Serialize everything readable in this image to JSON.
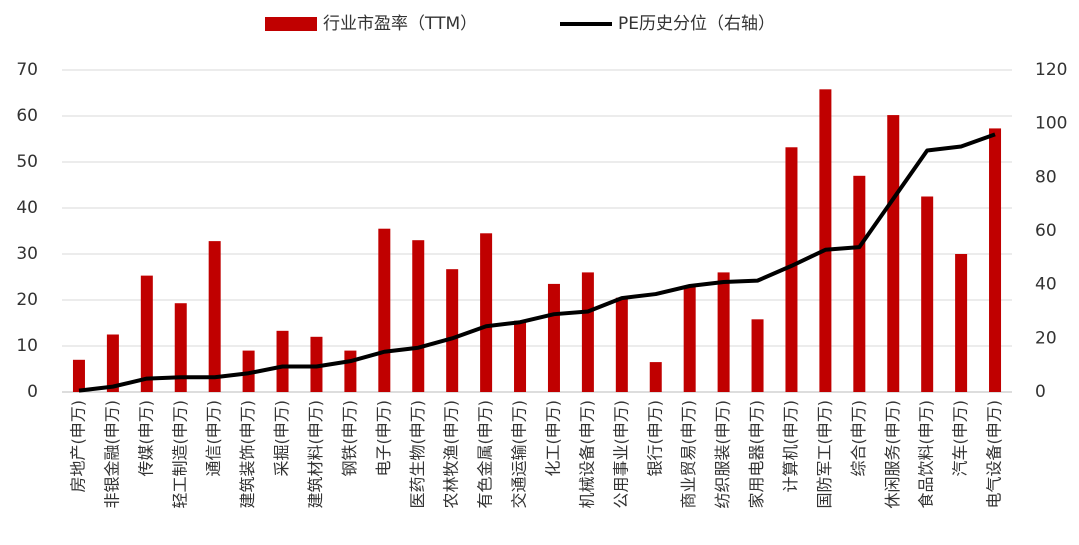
{
  "chart_data": {
    "type": "bar_line",
    "categories": [
      "房地产(申万)",
      "非银金融(申万)",
      "传媒(申万)",
      "轻工制造(申万)",
      "通信(申万)",
      "建筑装饰(申万)",
      "采掘(申万)",
      "建筑材料(申万)",
      "钢铁(申万)",
      "电子(申万)",
      "医药生物(申万)",
      "农林牧渔(申万)",
      "有色金属(申万)",
      "交通运输(申万)",
      "化工(申万)",
      "机械设备(申万)",
      "公用事业(申万)",
      "银行(申万)",
      "商业贸易(申万)",
      "纺织服装(申万)",
      "家用电器(申万)",
      "计算机(申万)",
      "国防军工(申万)",
      "综合(申万)",
      "休闲服务(申万)",
      "食品饮料(申万)",
      "汽车(申万)",
      "电气设备(申万)"
    ],
    "series": [
      {
        "name": "行业市盈率（TTM）",
        "color": "#c00000",
        "type": "bar",
        "values": [
          7,
          12.5,
          25.3,
          19.3,
          32.8,
          9,
          13.3,
          12,
          9,
          35.5,
          33,
          26.7,
          34.5,
          15.5,
          23.5,
          26,
          20.5,
          6.5,
          23,
          26,
          15.8,
          53.2,
          65.8,
          47,
          60.2,
          42.5,
          30,
          57.3
        ]
      },
      {
        "name": "PE历史分位（右轴）",
        "color": "#000000",
        "type": "line",
        "axis": "y2",
        "values": [
          0.5,
          2,
          5,
          5.5,
          5.5,
          7,
          9.5,
          9.5,
          11.5,
          15,
          16.5,
          20,
          24.5,
          26,
          29,
          30,
          35,
          36.5,
          39.5,
          41,
          41.5,
          47,
          53,
          54,
          72,
          90,
          91.5,
          96
        ]
      }
    ],
    "ylim": [
      0,
      70
    ],
    "yticks": [
      0,
      10,
      20,
      30,
      40,
      50,
      60,
      70
    ],
    "y2lim": [
      0,
      120
    ],
    "y2ticks": [
      0,
      20,
      40,
      60,
      80,
      100,
      120
    ],
    "grid": true,
    "legend": "top"
  }
}
